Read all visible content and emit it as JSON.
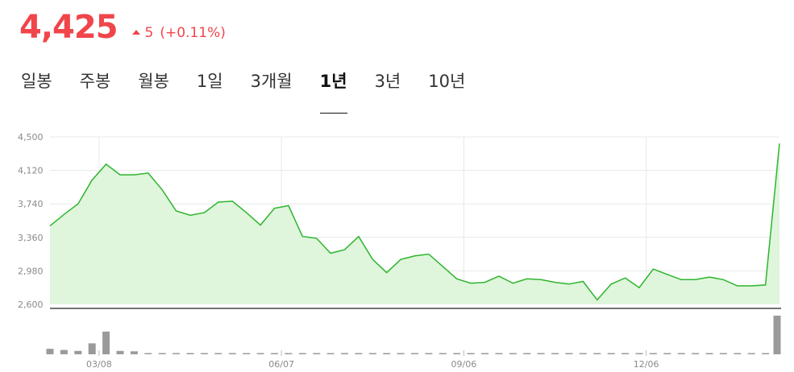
{
  "header": {
    "price": "4,425",
    "change_value": "5",
    "change_pct": "(+0.11%)",
    "up_color": "#f0454a"
  },
  "tabs": [
    {
      "label": "일봉",
      "active": false
    },
    {
      "label": "주봉",
      "active": false
    },
    {
      "label": "월봉",
      "active": false
    },
    {
      "label": "1일",
      "active": false
    },
    {
      "label": "3개월",
      "active": false
    },
    {
      "label": "1년",
      "active": true
    },
    {
      "label": "3년",
      "active": false
    },
    {
      "label": "10년",
      "active": false
    }
  ],
  "chart_data": {
    "type": "area",
    "line_color": "#2db52d",
    "fill_color": "#dff5dc",
    "volume_color": "#9a9a9a",
    "y_ticks": [
      "4,500",
      "4,120",
      "3,740",
      "3,360",
      "2,980",
      "2,600"
    ],
    "y_tick_values": [
      4500,
      4120,
      3740,
      3360,
      2980,
      2600
    ],
    "ylim": [
      2600,
      4500
    ],
    "x_ticks": [
      "03/08",
      "06/07",
      "09/06",
      "12/06"
    ],
    "x_tick_index": [
      3.5,
      16.5,
      29.5,
      42.5
    ],
    "grid": true,
    "values": [
      3490,
      3620,
      3740,
      4010,
      4190,
      4070,
      4070,
      4090,
      3900,
      3660,
      3610,
      3640,
      3760,
      3770,
      3640,
      3500,
      3690,
      3720,
      3370,
      3350,
      3180,
      3220,
      3370,
      3110,
      2960,
      3110,
      3150,
      3170,
      3030,
      2890,
      2840,
      2850,
      2920,
      2840,
      2890,
      2880,
      2850,
      2830,
      2860,
      2650,
      2830,
      2900,
      2790,
      3000,
      2940,
      2880,
      2880,
      2910,
      2880,
      2810,
      2810,
      2820,
      4425
    ],
    "volume": [
      0.24,
      0.19,
      0.15,
      0.48,
      1.0,
      0.15,
      0.13,
      0.05,
      0.05,
      0.05,
      0.04,
      0.04,
      0.04,
      0.04,
      0.04,
      0.04,
      0.05,
      0.04,
      0.04,
      0.04,
      0.04,
      0.04,
      0.04,
      0.04,
      0.04,
      0.04,
      0.04,
      0.04,
      0.04,
      0.04,
      0.03,
      0.03,
      0.05,
      0.03,
      0.03,
      0.03,
      0.03,
      0.03,
      0.03,
      0.03,
      0.03,
      0.03,
      0.03,
      0.04,
      0.03,
      0.03,
      0.03,
      0.03,
      0.03,
      0.03,
      0.03,
      0.03,
      1.7
    ]
  }
}
